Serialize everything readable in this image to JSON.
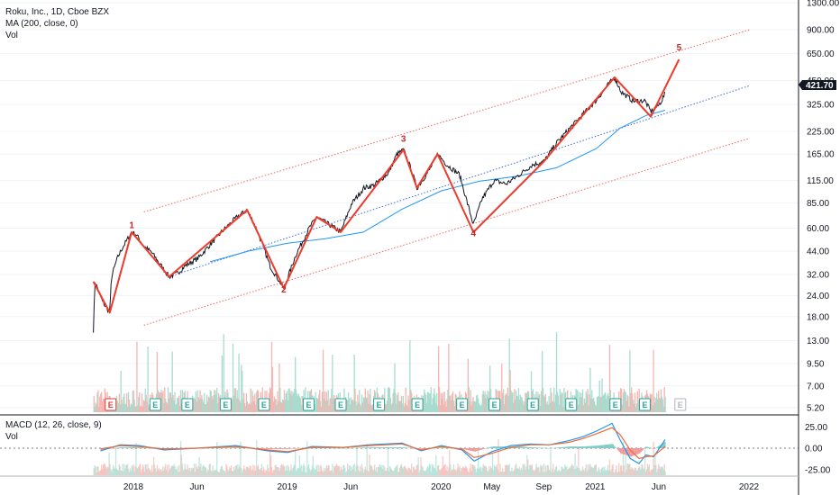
{
  "legend": {
    "title": "Roku, Inc., 1D, Cboe BZX",
    "ma": "MA (200, close, 0)",
    "vol": "Vol",
    "macd": "MACD (12, 26, close, 9)",
    "macd_vol": "Vol"
  },
  "price_badge": "421.70",
  "colors": {
    "price": "#131722",
    "ma": "#2196f3",
    "wave": "#ef3b2c",
    "channel": "#ef6a5e",
    "midline": "#3f6bd6",
    "vol_up": "#a7dccf",
    "vol_down": "#f5b5b0",
    "macd": "#2196f3",
    "signal": "#ef6a34",
    "earn": "#26a69a"
  },
  "chart_data": [
    {
      "type": "line",
      "title": "Roku, Inc., 1D, Cboe BZX",
      "scale": "log",
      "y_ticks": [
        "1300.00",
        "900.00",
        "650.00",
        "450.00",
        "325.00",
        "225.00",
        "165.00",
        "115.00",
        "85.00",
        "60.00",
        "44.00",
        "32.00",
        "24.00",
        "18.00",
        "13.00",
        "9.50",
        "7.00",
        "5.20"
      ],
      "x_ticks": [
        "2018",
        "Jun",
        "2019",
        "Jun",
        "2020",
        "May",
        "Sep",
        "2021",
        "Jun",
        "2022"
      ],
      "price_path": [
        [
          "2017-09-28",
          15
        ],
        [
          "2017-10-02",
          29
        ],
        [
          "2017-10-20",
          22
        ],
        [
          "2017-11-06",
          19
        ],
        [
          "2017-11-10",
          31
        ],
        [
          "2017-11-24",
          40
        ],
        [
          "2017-12-06",
          46
        ],
        [
          "2017-12-28",
          57
        ],
        [
          "2018-01-08",
          55
        ],
        [
          "2018-01-26",
          47
        ],
        [
          "2018-02-14",
          43
        ],
        [
          "2018-03-08",
          36
        ],
        [
          "2018-03-27",
          31
        ],
        [
          "2018-04-12",
          32
        ],
        [
          "2018-05-04",
          36
        ],
        [
          "2018-06-04",
          40
        ],
        [
          "2018-07-02",
          48
        ],
        [
          "2018-08-01",
          58
        ],
        [
          "2018-09-04",
          70
        ],
        [
          "2018-09-28",
          77
        ],
        [
          "2018-10-16",
          63
        ],
        [
          "2018-11-01",
          50
        ],
        [
          "2018-11-21",
          36
        ],
        [
          "2018-12-24",
          26.5
        ],
        [
          "2019-01-22",
          42
        ],
        [
          "2019-02-22",
          60
        ],
        [
          "2019-03-12",
          70
        ],
        [
          "2019-04-16",
          62
        ],
        [
          "2019-05-08",
          57
        ],
        [
          "2019-06-03",
          84
        ],
        [
          "2019-07-02",
          104
        ],
        [
          "2019-07-26",
          108
        ],
        [
          "2019-08-30",
          128
        ],
        [
          "2019-09-18",
          164
        ],
        [
          "2019-10-04",
          175
        ],
        [
          "2019-10-22",
          135
        ],
        [
          "2019-11-05",
          104
        ],
        [
          "2019-12-04",
          132
        ],
        [
          "2019-12-24",
          165
        ],
        [
          "2020-01-16",
          142
        ],
        [
          "2020-02-14",
          125
        ],
        [
          "2020-03-18",
          63
        ],
        [
          "2020-04-08",
          90
        ],
        [
          "2020-05-06",
          115
        ],
        [
          "2020-06-04",
          110
        ],
        [
          "2020-07-02",
          123
        ],
        [
          "2020-08-04",
          142
        ],
        [
          "2020-09-02",
          150
        ],
        [
          "2020-10-02",
          193
        ],
        [
          "2020-11-02",
          235
        ],
        [
          "2020-12-02",
          282
        ],
        [
          "2021-01-04",
          345
        ],
        [
          "2021-02-01",
          425
        ],
        [
          "2021-02-16",
          470
        ],
        [
          "2021-03-04",
          385
        ],
        [
          "2021-04-01",
          340
        ],
        [
          "2021-04-29",
          342
        ],
        [
          "2021-05-13",
          295
        ],
        [
          "2021-06-01",
          322
        ],
        [
          "2021-06-08",
          343
        ],
        [
          "2021-06-16",
          378
        ]
      ],
      "ma200_path": [
        [
          "2018-07-02",
          38
        ],
        [
          "2018-10-01",
          44
        ],
        [
          "2019-01-02",
          49
        ],
        [
          "2019-04-01",
          52
        ],
        [
          "2019-07-01",
          57
        ],
        [
          "2019-10-01",
          78
        ],
        [
          "2020-01-02",
          100
        ],
        [
          "2020-04-01",
          114
        ],
        [
          "2020-07-01",
          122
        ],
        [
          "2020-10-01",
          137
        ],
        [
          "2021-01-04",
          178
        ],
        [
          "2021-03-01",
          235
        ],
        [
          "2021-05-03",
          280
        ],
        [
          "2021-06-16",
          300
        ]
      ],
      "wave_path": [
        [
          "2017-09-28",
          29
        ],
        [
          "2017-11-06",
          19
        ],
        [
          "2017-12-28",
          57
        ],
        [
          "2018-03-27",
          31
        ],
        [
          "2018-09-28",
          77
        ],
        [
          "2018-12-24",
          26.5
        ],
        [
          "2019-03-12",
          70
        ],
        [
          "2019-05-08",
          57
        ],
        [
          "2019-10-04",
          175
        ],
        [
          "2019-11-05",
          104
        ],
        [
          "2019-12-24",
          165
        ],
        [
          "2020-03-18",
          57
        ],
        [
          "2020-09-02",
          150
        ],
        [
          "2021-02-16",
          470
        ],
        [
          "2021-05-13",
          275
        ],
        [
          "2021-07-19",
          600
        ]
      ],
      "wave_labels": [
        {
          "text": "1",
          "x": "2017-12-28",
          "y": 60
        },
        {
          "text": "2",
          "x": "2018-12-24",
          "y": 25
        },
        {
          "text": "3",
          "x": "2019-10-04",
          "y": 195
        },
        {
          "text": "4",
          "x": "2020-03-18",
          "y": 54
        },
        {
          "text": "5",
          "x": "2021-07-19",
          "y": 680
        }
      ],
      "channel_upper": [
        [
          "2018-01-26",
          75
        ],
        [
          "2022-01-03",
          900
        ]
      ],
      "channel_middle": [
        [
          "2018-03-27",
          31
        ],
        [
          "2022-01-03",
          420
        ]
      ],
      "channel_lower": [
        [
          "2018-01-26",
          16
        ],
        [
          "2022-01-03",
          205
        ]
      ],
      "earnings_dates": [
        "2017-11-08",
        "2018-02-22",
        "2018-05-09",
        "2018-08-08",
        "2018-11-07",
        "2019-02-21",
        "2019-05-08",
        "2019-08-07",
        "2019-11-06",
        "2020-02-20",
        "2020-05-07",
        "2020-08-06",
        "2020-11-05",
        "2021-02-18",
        "2021-04-29",
        "2021-07-22"
      ]
    },
    {
      "type": "line",
      "title": "MACD (12, 26, close, 9)",
      "y_ticks": [
        "25.00",
        "0.00",
        "-25.00"
      ],
      "x_ticks": [
        "2018",
        "Jun",
        "2019",
        "Jun",
        "2020",
        "May",
        "Sep",
        "2021",
        "Jun",
        "2022"
      ],
      "series": [
        {
          "name": "MACD",
          "points": [
            [
              "2017-10-15",
              -3
            ],
            [
              "2017-12-01",
              4
            ],
            [
              "2018-01-15",
              3
            ],
            [
              "2018-03-15",
              -2
            ],
            [
              "2018-06-01",
              0
            ],
            [
              "2018-09-01",
              3
            ],
            [
              "2018-11-15",
              -3
            ],
            [
              "2019-01-02",
              -5
            ],
            [
              "2019-03-01",
              2
            ],
            [
              "2019-05-15",
              1
            ],
            [
              "2019-07-15",
              4
            ],
            [
              "2019-10-01",
              6
            ],
            [
              "2019-11-15",
              -3
            ],
            [
              "2020-01-02",
              3
            ],
            [
              "2020-02-20",
              -2
            ],
            [
              "2020-03-20",
              -15
            ],
            [
              "2020-05-01",
              -4
            ],
            [
              "2020-06-15",
              3
            ],
            [
              "2020-08-01",
              5
            ],
            [
              "2020-09-15",
              4
            ],
            [
              "2020-11-01",
              9
            ],
            [
              "2020-12-01",
              13
            ],
            [
              "2021-01-04",
              20
            ],
            [
              "2021-02-10",
              29
            ],
            [
              "2021-03-01",
              10
            ],
            [
              "2021-03-25",
              -12
            ],
            [
              "2021-04-15",
              -18
            ],
            [
              "2021-05-01",
              -8
            ],
            [
              "2021-05-20",
              -10
            ],
            [
              "2021-06-16",
              10
            ]
          ]
        },
        {
          "name": "Signal",
          "points": [
            [
              "2017-10-15",
              -1
            ],
            [
              "2017-12-01",
              3
            ],
            [
              "2018-01-15",
              2
            ],
            [
              "2018-03-15",
              -1
            ],
            [
              "2018-06-01",
              0
            ],
            [
              "2018-09-01",
              2
            ],
            [
              "2018-11-15",
              -2
            ],
            [
              "2019-01-02",
              -4
            ],
            [
              "2019-03-01",
              1
            ],
            [
              "2019-05-15",
              1
            ],
            [
              "2019-07-15",
              3
            ],
            [
              "2019-10-01",
              5
            ],
            [
              "2019-11-15",
              -2
            ],
            [
              "2020-01-02",
              2
            ],
            [
              "2020-02-20",
              -1
            ],
            [
              "2020-03-20",
              -11
            ],
            [
              "2020-05-01",
              -6
            ],
            [
              "2020-06-15",
              1
            ],
            [
              "2020-08-01",
              4
            ],
            [
              "2020-09-15",
              4
            ],
            [
              "2020-11-01",
              7
            ],
            [
              "2020-12-01",
              11
            ],
            [
              "2021-01-04",
              17
            ],
            [
              "2021-02-10",
              24
            ],
            [
              "2021-03-01",
              16
            ],
            [
              "2021-03-25",
              -2
            ],
            [
              "2021-04-15",
              -12
            ],
            [
              "2021-05-01",
              -10
            ],
            [
              "2021-05-20",
              -9
            ],
            [
              "2021-06-16",
              2
            ]
          ]
        }
      ]
    }
  ]
}
